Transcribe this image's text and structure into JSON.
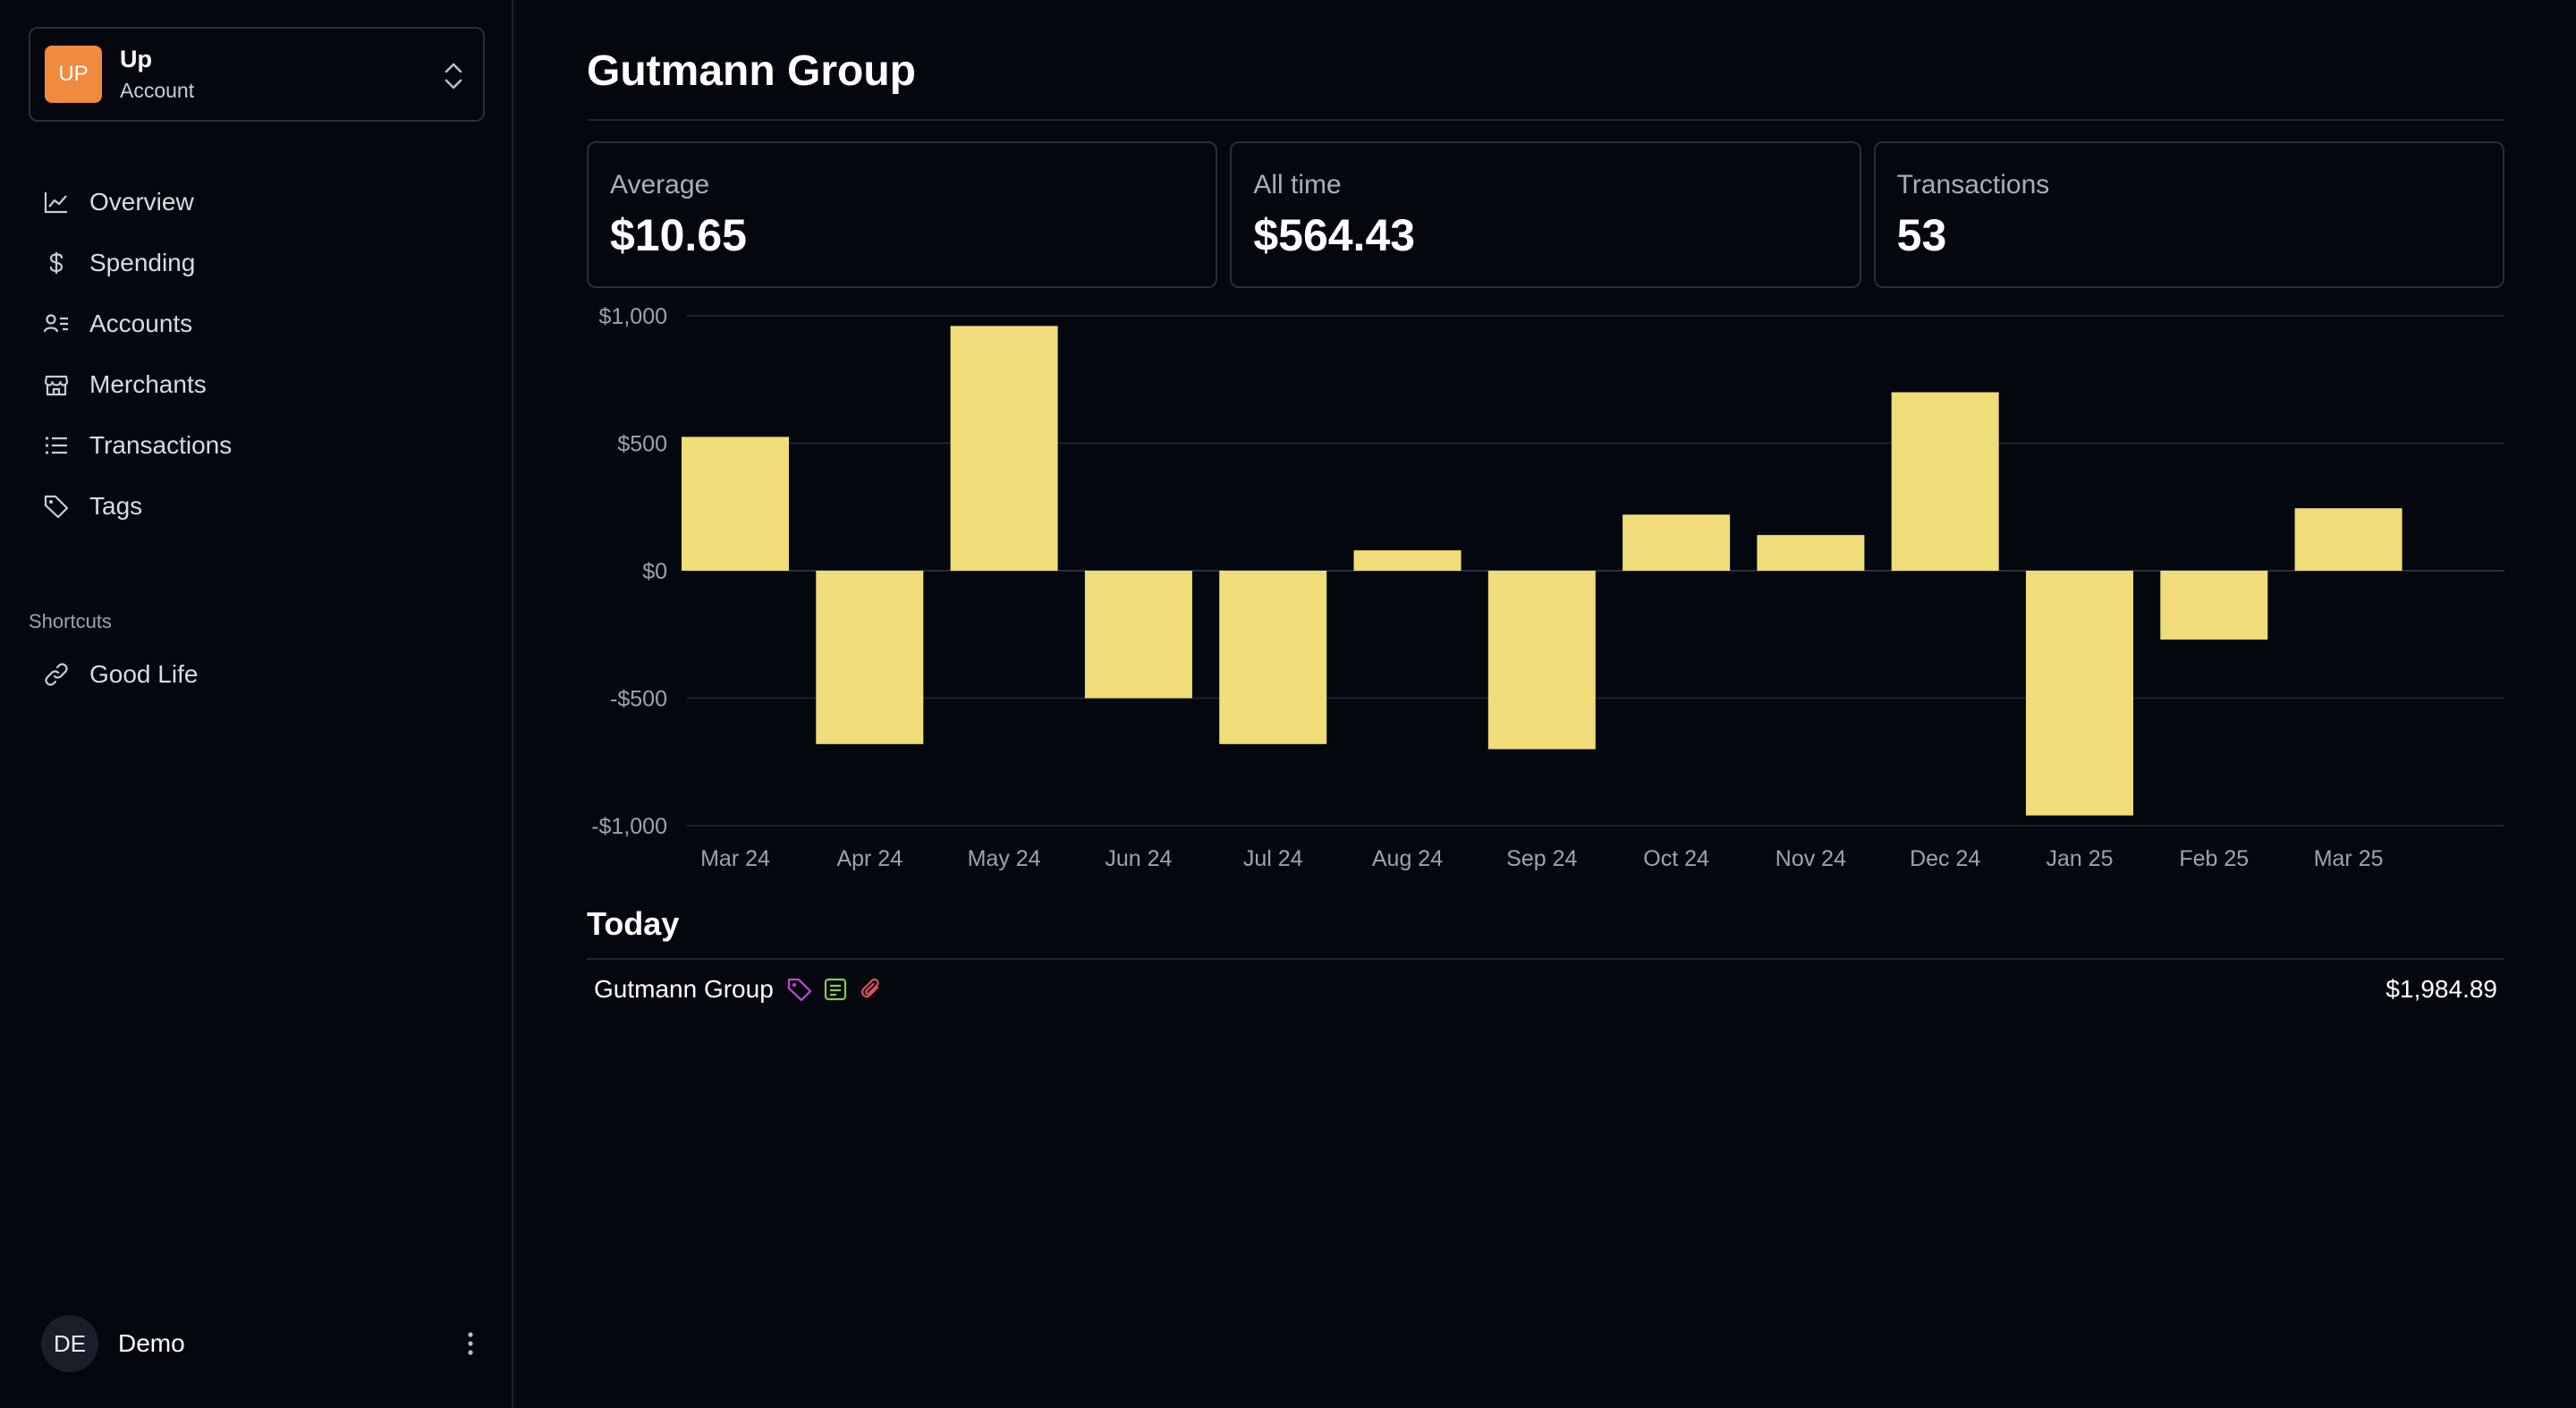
{
  "account": {
    "avatar_text": "UP",
    "name": "Up",
    "subtitle": "Account"
  },
  "nav": {
    "items": [
      {
        "label": "Overview",
        "icon": "line-chart-icon"
      },
      {
        "label": "Spending",
        "icon": "dollar-icon"
      },
      {
        "label": "Accounts",
        "icon": "accounts-icon"
      },
      {
        "label": "Merchants",
        "icon": "store-icon"
      },
      {
        "label": "Transactions",
        "icon": "list-icon"
      },
      {
        "label": "Tags",
        "icon": "tag-icon"
      }
    ]
  },
  "shortcuts": {
    "label": "Shortcuts",
    "items": [
      {
        "label": "Good Life",
        "icon": "link-icon"
      }
    ]
  },
  "user": {
    "initials": "DE",
    "name": "Demo"
  },
  "page": {
    "title": "Gutmann Group"
  },
  "stats": [
    {
      "label": "Average",
      "value": "$10.65"
    },
    {
      "label": "All time",
      "value": "$564.43"
    },
    {
      "label": "Transactions",
      "value": "53"
    }
  ],
  "chart_data": {
    "type": "bar",
    "categories": [
      "Mar 24",
      "Apr 24",
      "May 24",
      "Jun 24",
      "Jul 24",
      "Aug 24",
      "Sep 24",
      "Oct 24",
      "Nov 24",
      "Dec 24",
      "Jan 25",
      "Feb 25",
      "Mar 25"
    ],
    "values": [
      525,
      -680,
      960,
      -500,
      -680,
      80,
      -700,
      220,
      140,
      700,
      -960,
      -270,
      245
    ],
    "ylim": [
      -1000,
      1000
    ],
    "yticks": [
      1000,
      500,
      0,
      -500,
      -1000
    ],
    "ytick_labels": [
      "$1,000",
      "$500",
      "$0",
      "-$500",
      "-$1,000"
    ],
    "grid": true,
    "bar_color": "#f0dc78",
    "title": "",
    "xlabel": "",
    "ylabel": ""
  },
  "today": {
    "title": "Today",
    "transactions": [
      {
        "name": "Gutmann Group",
        "amount": "$1,984.89",
        "icons": [
          "tag-icon",
          "note-icon",
          "attachment-icon"
        ]
      }
    ]
  }
}
